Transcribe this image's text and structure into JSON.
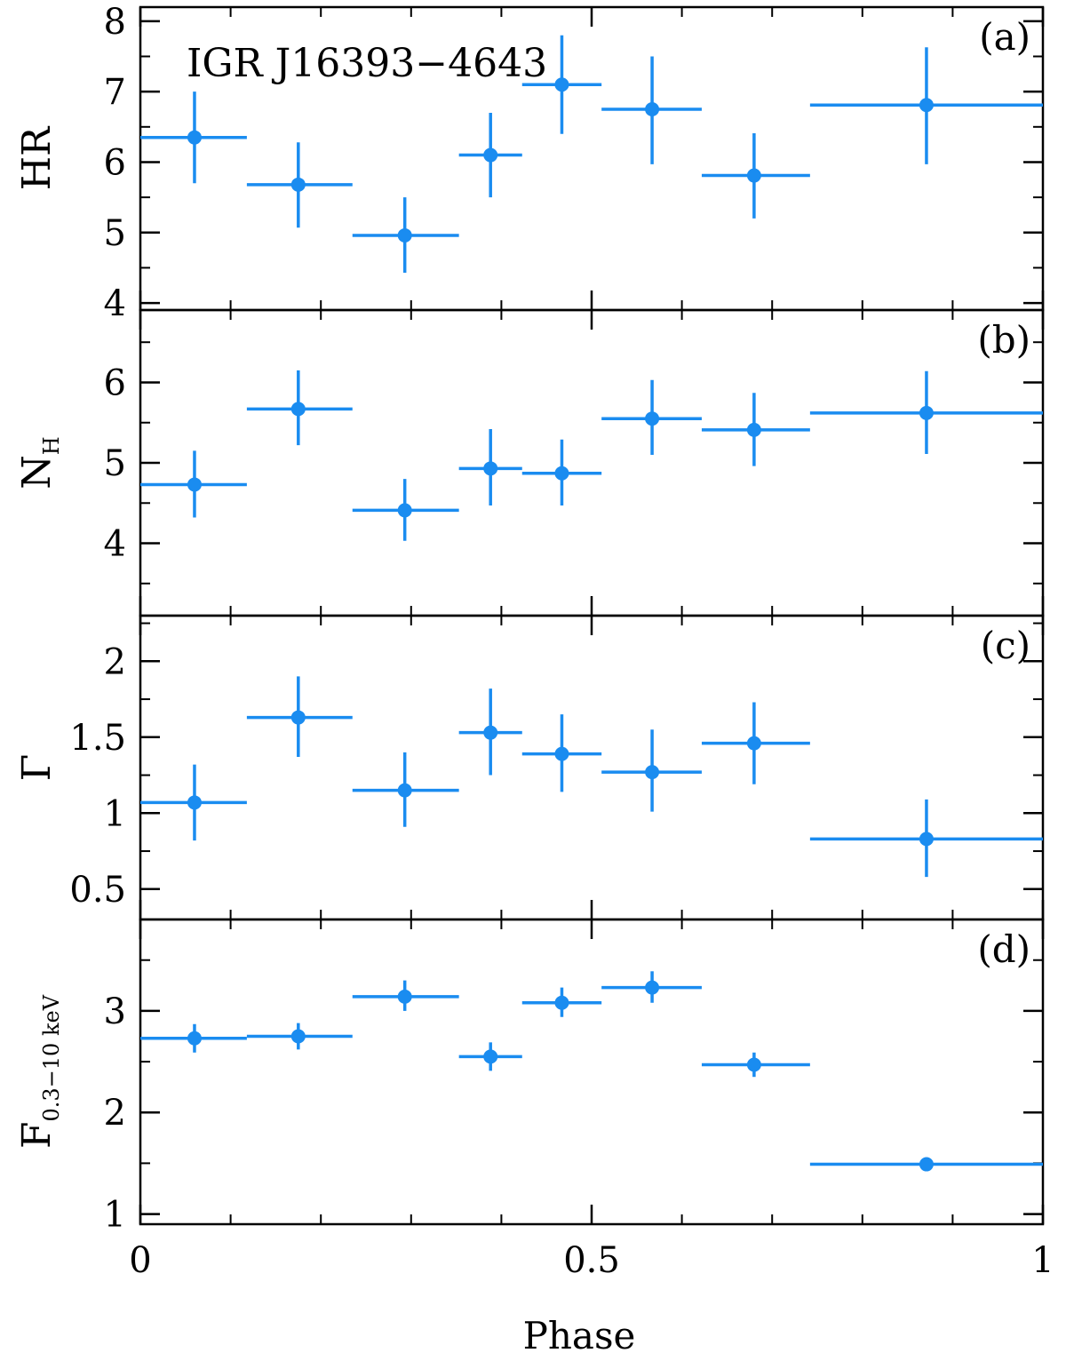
{
  "source_label": "IGR J16393−4643",
  "marker_color": "#1a8cf0",
  "axis_color": "#000000",
  "chart_data": [
    {
      "type": "scatter",
      "panel_label": "(a)",
      "ylabel": "HR",
      "ylabel_sub": "",
      "ylim": [
        3.9,
        8.2
      ],
      "yticks": [
        4,
        5,
        6,
        7,
        8
      ],
      "ytick_labels": [
        "4",
        "5",
        "6",
        "7",
        "8"
      ],
      "yminor": [
        4.5,
        5.5,
        6.5,
        7.5
      ],
      "xlim": [
        0,
        1
      ],
      "points": [
        {
          "x": 0.06,
          "xlo": 0.0,
          "xhi": 0.118,
          "y": 6.35,
          "ylo": 5.7,
          "yhi": 7.0
        },
        {
          "x": 0.175,
          "xlo": 0.118,
          "xhi": 0.235,
          "y": 5.68,
          "ylo": 5.07,
          "yhi": 6.28
        },
        {
          "x": 0.293,
          "xlo": 0.235,
          "xhi": 0.353,
          "y": 4.96,
          "ylo": 4.43,
          "yhi": 5.5
        },
        {
          "x": 0.388,
          "xlo": 0.353,
          "xhi": 0.423,
          "y": 6.1,
          "ylo": 5.5,
          "yhi": 6.7
        },
        {
          "x": 0.467,
          "xlo": 0.423,
          "xhi": 0.511,
          "y": 7.1,
          "ylo": 6.4,
          "yhi": 7.8
        },
        {
          "x": 0.567,
          "xlo": 0.511,
          "xhi": 0.622,
          "y": 6.75,
          "ylo": 5.97,
          "yhi": 7.5
        },
        {
          "x": 0.68,
          "xlo": 0.622,
          "xhi": 0.742,
          "y": 5.81,
          "ylo": 5.2,
          "yhi": 6.41
        },
        {
          "x": 0.871,
          "xlo": 0.742,
          "xhi": 1.0,
          "y": 6.81,
          "ylo": 5.97,
          "yhi": 7.63
        }
      ]
    },
    {
      "type": "scatter",
      "panel_label": "(b)",
      "ylabel": "N",
      "ylabel_sub": "H",
      "ylim": [
        3.1,
        6.9
      ],
      "yticks": [
        4,
        5,
        6
      ],
      "ytick_labels": [
        "4",
        "5",
        "6"
      ],
      "yminor": [
        3.5,
        4.5,
        5.5,
        6.5
      ],
      "xlim": [
        0,
        1
      ],
      "points": [
        {
          "x": 0.06,
          "xlo": 0.0,
          "xhi": 0.118,
          "y": 4.73,
          "ylo": 4.32,
          "yhi": 5.15
        },
        {
          "x": 0.175,
          "xlo": 0.118,
          "xhi": 0.235,
          "y": 5.67,
          "ylo": 5.22,
          "yhi": 6.15
        },
        {
          "x": 0.293,
          "xlo": 0.235,
          "xhi": 0.353,
          "y": 4.41,
          "ylo": 4.03,
          "yhi": 4.8
        },
        {
          "x": 0.388,
          "xlo": 0.353,
          "xhi": 0.423,
          "y": 4.93,
          "ylo": 4.47,
          "yhi": 5.42
        },
        {
          "x": 0.467,
          "xlo": 0.423,
          "xhi": 0.511,
          "y": 4.87,
          "ylo": 4.47,
          "yhi": 5.29
        },
        {
          "x": 0.567,
          "xlo": 0.511,
          "xhi": 0.622,
          "y": 5.55,
          "ylo": 5.1,
          "yhi": 6.03
        },
        {
          "x": 0.68,
          "xlo": 0.622,
          "xhi": 0.742,
          "y": 5.41,
          "ylo": 4.96,
          "yhi": 5.87
        },
        {
          "x": 0.871,
          "xlo": 0.742,
          "xhi": 1.0,
          "y": 5.62,
          "ylo": 5.11,
          "yhi": 6.14
        }
      ]
    },
    {
      "type": "scatter",
      "panel_label": "(c)",
      "ylabel": "Γ",
      "ylabel_sub": "",
      "ylim": [
        0.3,
        2.3
      ],
      "yticks": [
        0.5,
        1,
        1.5,
        2
      ],
      "ytick_labels": [
        "0.5",
        "1",
        "1.5",
        "2"
      ],
      "yminor": [
        0.75,
        1.25,
        1.75,
        2.25
      ],
      "xlim": [
        0,
        1
      ],
      "points": [
        {
          "x": 0.06,
          "xlo": 0.0,
          "xhi": 0.118,
          "y": 1.07,
          "ylo": 0.82,
          "yhi": 1.32
        },
        {
          "x": 0.175,
          "xlo": 0.118,
          "xhi": 0.235,
          "y": 1.63,
          "ylo": 1.37,
          "yhi": 1.9
        },
        {
          "x": 0.293,
          "xlo": 0.235,
          "xhi": 0.353,
          "y": 1.15,
          "ylo": 0.91,
          "yhi": 1.4
        },
        {
          "x": 0.388,
          "xlo": 0.353,
          "xhi": 0.423,
          "y": 1.53,
          "ylo": 1.25,
          "yhi": 1.82
        },
        {
          "x": 0.467,
          "xlo": 0.423,
          "xhi": 0.511,
          "y": 1.39,
          "ylo": 1.14,
          "yhi": 1.65
        },
        {
          "x": 0.567,
          "xlo": 0.511,
          "xhi": 0.622,
          "y": 1.27,
          "ylo": 1.01,
          "yhi": 1.55
        },
        {
          "x": 0.68,
          "xlo": 0.622,
          "xhi": 0.742,
          "y": 1.46,
          "ylo": 1.19,
          "yhi": 1.73
        },
        {
          "x": 0.871,
          "xlo": 0.742,
          "xhi": 1.0,
          "y": 0.83,
          "ylo": 0.58,
          "yhi": 1.09
        }
      ]
    },
    {
      "type": "scatter",
      "panel_label": "(d)",
      "ylabel": "F",
      "ylabel_sub": "0.3−10 keV",
      "ylim": [
        0.9,
        3.9
      ],
      "yticks": [
        1,
        2,
        3
      ],
      "ytick_labels": [
        "1",
        "2",
        "3"
      ],
      "yminor": [
        1.5,
        2.5,
        3.5
      ],
      "xlim": [
        0,
        1
      ],
      "points": [
        {
          "x": 0.06,
          "xlo": 0.0,
          "xhi": 0.118,
          "y": 2.73,
          "ylo": 2.59,
          "yhi": 2.87
        },
        {
          "x": 0.175,
          "xlo": 0.118,
          "xhi": 0.235,
          "y": 2.75,
          "ylo": 2.62,
          "yhi": 2.88
        },
        {
          "x": 0.293,
          "xlo": 0.235,
          "xhi": 0.353,
          "y": 3.14,
          "ylo": 3.0,
          "yhi": 3.3
        },
        {
          "x": 0.388,
          "xlo": 0.353,
          "xhi": 0.423,
          "y": 2.55,
          "ylo": 2.41,
          "yhi": 2.69
        },
        {
          "x": 0.467,
          "xlo": 0.423,
          "xhi": 0.511,
          "y": 3.08,
          "ylo": 2.94,
          "yhi": 3.23
        },
        {
          "x": 0.567,
          "xlo": 0.511,
          "xhi": 0.622,
          "y": 3.23,
          "ylo": 3.08,
          "yhi": 3.39
        },
        {
          "x": 0.68,
          "xlo": 0.622,
          "xhi": 0.742,
          "y": 2.47,
          "ylo": 2.35,
          "yhi": 2.59
        },
        {
          "x": 0.871,
          "xlo": 0.742,
          "xhi": 1.0,
          "y": 1.49,
          "ylo": 1.44,
          "yhi": 1.54
        }
      ]
    }
  ],
  "xaxis": {
    "label": "Phase",
    "ticks": [
      0,
      0.5,
      1
    ],
    "tick_labels": [
      "0",
      "0.5",
      "1"
    ],
    "minor": [
      0.1,
      0.2,
      0.3,
      0.4,
      0.6,
      0.7,
      0.8,
      0.9
    ]
  }
}
